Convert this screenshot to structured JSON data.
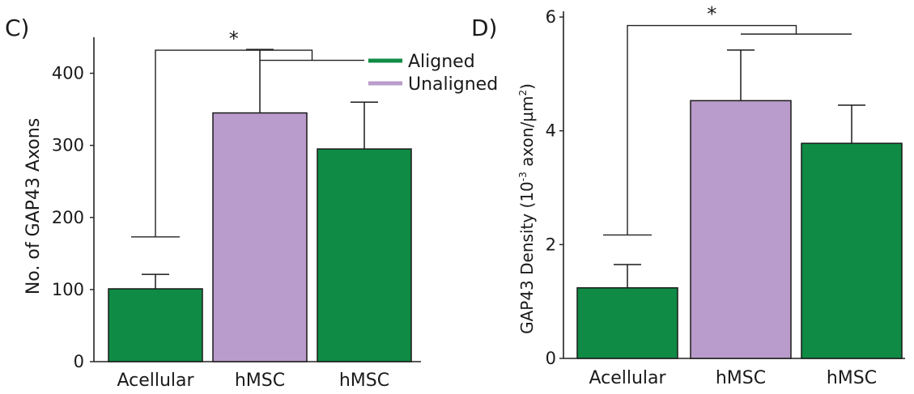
{
  "chart_data": [
    {
      "panel_label": "C)",
      "type": "bar",
      "ylabel": "No. of GAP43 Axons",
      "ylim": [
        0,
        450
      ],
      "yticks": [
        0,
        100,
        200,
        300,
        400
      ],
      "categories": [
        "Acellular",
        "hMSC",
        "hMSC"
      ],
      "values": [
        101,
        345,
        295
      ],
      "errors": [
        20,
        88,
        65
      ],
      "bar_colors": [
        "#0f8b45",
        "#b99ccb",
        "#0f8b45"
      ],
      "significance": {
        "symbol": "*",
        "left_bracket_y": 173,
        "top_y": 432,
        "right_bracket_y": 418
      },
      "legend": [
        {
          "label": "Aligned",
          "color": "#0f8b45"
        },
        {
          "label": "Unaligned",
          "color": "#b99ccb"
        }
      ],
      "legend_position": "top-right",
      "grid": false
    },
    {
      "panel_label": "D)",
      "type": "bar",
      "ylabel_main": "GAP43 Density (10",
      "ylabel_sup1": "-3",
      "ylabel_mid": " axon/µm",
      "ylabel_sup2": "2",
      "ylabel_end": ")",
      "ylim": [
        0,
        6.1
      ],
      "yticks": [
        0,
        2,
        4,
        6
      ],
      "categories": [
        "Acellular",
        "hMSC",
        "hMSC"
      ],
      "values": [
        1.24,
        4.53,
        3.78
      ],
      "errors": [
        0.41,
        0.89,
        0.67
      ],
      "bar_colors": [
        "#0f8b45",
        "#b99ccb",
        "#0f8b45"
      ],
      "significance": {
        "symbol": "*",
        "left_bracket_y": 2.17,
        "top_y": 5.85,
        "right_bracket_y": 5.7
      },
      "grid": false
    }
  ]
}
